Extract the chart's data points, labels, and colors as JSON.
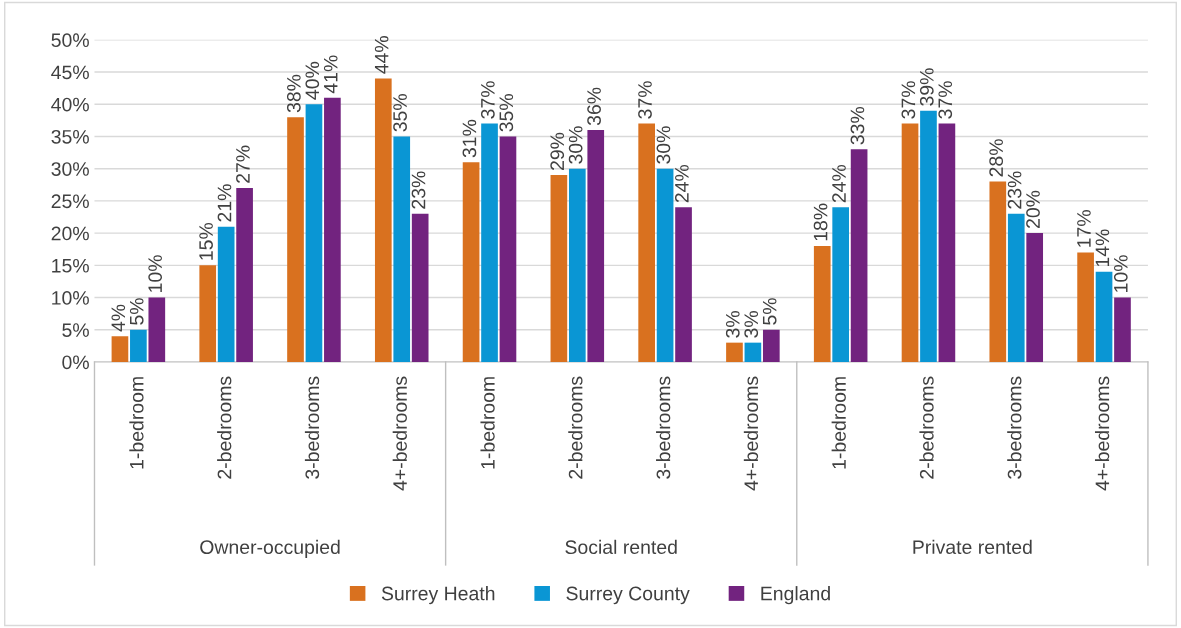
{
  "chart_data": {
    "type": "bar",
    "categories": [
      "1-bedroom",
      "2-bedrooms",
      "3-bedrooms",
      "4+-bedrooms",
      "1-bedroom",
      "2-bedrooms",
      "3-bedrooms",
      "4+-bedrooms",
      "1-bedroom",
      "2-bedrooms",
      "3-bedrooms",
      "4+-bedrooms"
    ],
    "annotations": [
      "Owner-occupied",
      "Social rented",
      "Private rented"
    ],
    "series": [
      {
        "name": "Surrey Heath",
        "color": "#d9711f",
        "values": [
          4,
          15,
          38,
          44,
          31,
          29,
          37,
          3,
          18,
          37,
          28,
          17
        ],
        "value_labels": [
          "4%",
          "15%",
          "38%",
          "44%",
          "31%",
          "29%",
          "37%",
          "3%",
          "18%",
          "37%",
          "28%",
          "17%"
        ]
      },
      {
        "name": "Surrey County",
        "color": "#0a96d4",
        "values": [
          5,
          21,
          40,
          35,
          37,
          30,
          30,
          3,
          24,
          39,
          23,
          14
        ],
        "value_labels": [
          "5%",
          "21%",
          "40%",
          "35%",
          "37%",
          "30%",
          "30%",
          "3%",
          "24%",
          "39%",
          "23%",
          "14%"
        ]
      },
      {
        "name": "England",
        "color": "#72237f",
        "values": [
          10,
          27,
          41,
          23,
          35,
          36,
          24,
          5,
          33,
          37,
          20,
          10
        ],
        "value_labels": [
          "10%",
          "27%",
          "41%",
          "23%",
          "35%",
          "36%",
          "24%",
          "5%",
          "33%",
          "37%",
          "20%",
          "10%"
        ]
      }
    ],
    "ylim": [
      0,
      50
    ],
    "yticks": [
      {
        "value": 0,
        "label": "0%"
      },
      {
        "value": 5,
        "label": "5%"
      },
      {
        "value": 10,
        "label": "10%"
      },
      {
        "value": 15,
        "label": "15%"
      },
      {
        "value": 20,
        "label": "20%"
      },
      {
        "value": 25,
        "label": "25%"
      },
      {
        "value": 30,
        "label": "30%"
      },
      {
        "value": 35,
        "label": "35%"
      },
      {
        "value": 40,
        "label": "40%"
      },
      {
        "value": 45,
        "label": "45%"
      },
      {
        "value": 50,
        "label": "50%"
      }
    ],
    "grid": "y",
    "legend": "bottom"
  }
}
